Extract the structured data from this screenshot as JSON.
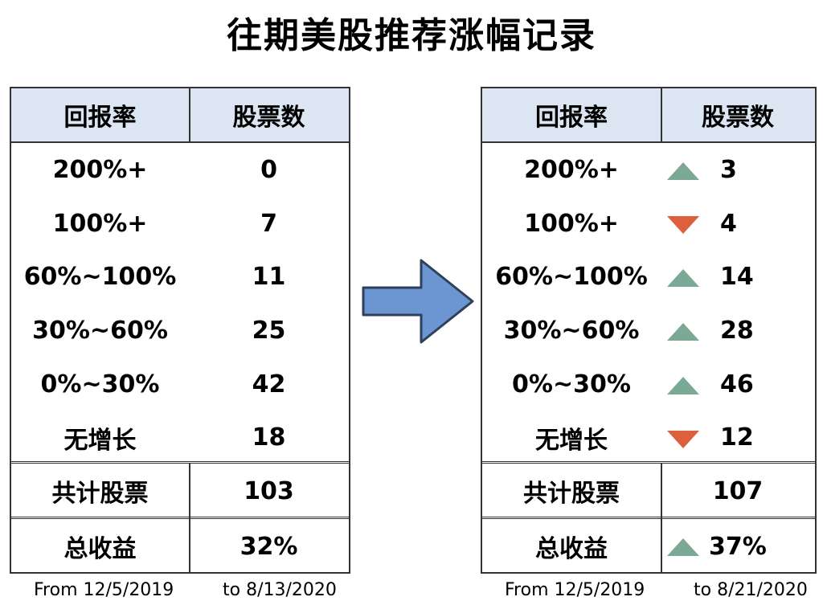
{
  "title": "往期美股推荐涨幅记录",
  "trend_colors": {
    "up": "#7ba995",
    "down": "#dc5f3e"
  },
  "tables": [
    {
      "headers": [
        "回报率",
        "股票数"
      ],
      "rows": [
        {
          "range": "200%+",
          "count": "0"
        },
        {
          "range": "100%+",
          "count": "7"
        },
        {
          "range": "60%~100%",
          "count": "11"
        },
        {
          "range": "30%~60%",
          "count": "25"
        },
        {
          "range": "0%~30%",
          "count": "42"
        },
        {
          "range": "无增长",
          "count": "18"
        }
      ],
      "total": {
        "label": "共计股票",
        "value": "103"
      },
      "return": {
        "label": "总收益",
        "value": "32%"
      },
      "footer": {
        "from": "From 12/5/2019",
        "to": "to 8/13/2020"
      }
    },
    {
      "headers": [
        "回报率",
        "股票数"
      ],
      "rows": [
        {
          "range": "200%+",
          "count": "3",
          "trend": "up"
        },
        {
          "range": "100%+",
          "count": "4",
          "trend": "down"
        },
        {
          "range": "60%~100%",
          "count": "14",
          "trend": "up"
        },
        {
          "range": "30%~60%",
          "count": "28",
          "trend": "up"
        },
        {
          "range": "0%~30%",
          "count": "46",
          "trend": "up"
        },
        {
          "range": "无增长",
          "count": "12",
          "trend": "down"
        }
      ],
      "total": {
        "label": "共计股票",
        "value": "107"
      },
      "return": {
        "label": "总收益",
        "value": "37%",
        "trend": "up"
      },
      "footer": {
        "from": "From 12/5/2019",
        "to": "to 8/21/2020"
      }
    }
  ]
}
